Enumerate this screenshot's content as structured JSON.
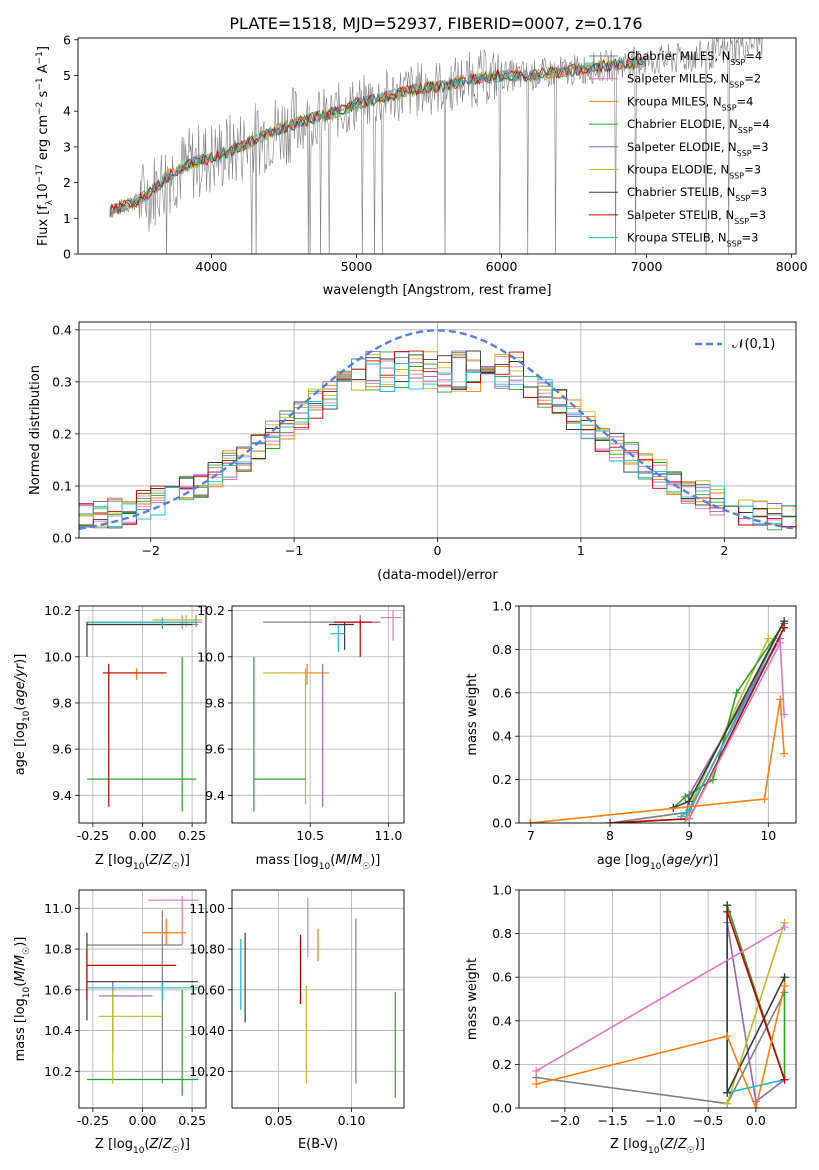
{
  "figure_title": "PLATE=1518, MJD=52937, FIBERID=0007, z=0.176",
  "colors": [
    "#7f7f7f",
    "#e377c2",
    "#ff7f0e",
    "#2ca02c",
    "#9467bd",
    "#bcbd22",
    "#393939",
    "#c00000",
    "#17becf"
  ],
  "model_names": [
    "Chabrier MILES",
    "Salpeter MILES",
    "Kroupa MILES",
    "Chabrier ELODIE",
    "Salpeter ELODIE",
    "Kroupa ELODIE",
    "Chabrier STELIB",
    "Salpeter STELIB",
    "Kroupa STELIB"
  ],
  "chart_data": [
    {
      "id": "spectrum",
      "type": "line",
      "title": "PLATE=1518, MJD=52937, FIBERID=0007, z=0.176",
      "xlabel": "wavelength [Angstrom, rest frame]",
      "ylabel": "Flux [f_λ 10^-17 erg cm^-2 s^-1 A^-1]",
      "xlim": [
        3080,
        8030
      ],
      "ylim": [
        0,
        6.05
      ],
      "xticks": [
        4000,
        5000,
        6000,
        7000,
        8000
      ],
      "yticks": [
        0,
        1,
        2,
        3,
        4,
        5,
        6
      ],
      "data_curve": {
        "name": "data",
        "x": [
          3300,
          3400,
          3500,
          3600,
          3700,
          3800,
          3900,
          4000,
          4200,
          4400,
          4600,
          4800,
          5000,
          5200,
          5400,
          5600,
          5800,
          6000,
          6200,
          6400,
          6600,
          6800,
          7000,
          7200,
          7400,
          7600,
          7800
        ],
        "y": [
          1.2,
          1.35,
          1.5,
          1.8,
          2.2,
          2.4,
          2.6,
          2.7,
          3.0,
          3.4,
          3.7,
          3.9,
          4.2,
          4.4,
          4.6,
          4.7,
          4.9,
          5.0,
          5.0,
          5.1,
          5.2,
          5.3,
          5.4,
          5.45,
          5.55,
          5.75,
          6.0
        ]
      },
      "legend": [
        {
          "label": "Chabrier MILES, N_SSP=4"
        },
        {
          "label": "Salpeter MILES, N_SSP=2"
        },
        {
          "label": "Kroupa MILES, N_SSP=4"
        },
        {
          "label": "Chabrier ELODIE, N_SSP=4"
        },
        {
          "label": "Salpeter ELODIE, N_SSP=3"
        },
        {
          "label": "Kroupa ELODIE, N_SSP=3"
        },
        {
          "label": "Chabrier STELIB, N_SSP=3"
        },
        {
          "label": "Salpeter STELIB, N_SSP=3"
        },
        {
          "label": "Kroupa STELIB, N_SSP=3"
        }
      ]
    },
    {
      "id": "residuals",
      "type": "line",
      "xlabel": "(data-model)/error",
      "ylabel": "Normed distribution",
      "xlim": [
        -2.5,
        2.5
      ],
      "ylim": [
        0,
        0.415
      ],
      "xticks": [
        -2,
        -1,
        0,
        1,
        2
      ],
      "yticks": [
        0.0,
        0.1,
        0.2,
        0.3,
        0.4
      ],
      "legend": [
        {
          "label": "𝒩(0,1)"
        }
      ],
      "gaussian": {
        "mean": 0,
        "sigma": 1
      }
    },
    {
      "id": "age-vs-Z",
      "type": "scatter",
      "xlabel": "Z [log10(Z/Z☉)]",
      "ylabel": "age [log10(age/yr)]",
      "xlim": [
        -0.32,
        0.32
      ],
      "ylim": [
        9.28,
        10.22
      ],
      "xticks": [
        -0.25,
        0.0,
        0.25
      ],
      "yticks": [
        9.4,
        9.6,
        9.8,
        10.0,
        10.2
      ]
    },
    {
      "id": "age-vs-mass",
      "type": "scatter",
      "xlabel": "mass [log10(M/M☉)]",
      "ylabel": "",
      "xlim": [
        10.0,
        11.1
      ],
      "ylim": [
        9.28,
        10.22
      ],
      "xticks": [
        10.5,
        11.0
      ],
      "yticks": [
        9.4,
        9.6,
        9.8,
        10.0,
        10.2
      ]
    },
    {
      "id": "weight-vs-age",
      "type": "line",
      "xlabel": "age [log10(age/yr)]",
      "ylabel": "mass weight",
      "xlim": [
        6.85,
        10.35
      ],
      "ylim": [
        0,
        1.0
      ],
      "xticks": [
        7,
        8,
        9,
        10
      ],
      "yticks": [
        0.0,
        0.2,
        0.4,
        0.6,
        0.8,
        1.0
      ],
      "series": [
        {
          "x": [
            8.0,
            9.0,
            10.2
          ],
          "y": [
            0.0,
            0.05,
            0.93
          ]
        },
        {
          "x": [
            9.0,
            10.15,
            10.2
          ],
          "y": [
            0.02,
            0.83,
            0.5
          ]
        },
        {
          "x": [
            6.99,
            9.95,
            10.15,
            10.2
          ],
          "y": [
            0.0,
            0.11,
            0.57,
            0.32
          ]
        },
        {
          "x": [
            8.8,
            8.95,
            9.3,
            9.6,
            10.2
          ],
          "y": [
            0.07,
            0.12,
            0.2,
            0.6,
            0.92
          ]
        },
        {
          "x": [
            8.95,
            9.0,
            10.15
          ],
          "y": [
            0.0,
            0.13,
            0.85
          ]
        },
        {
          "x": [
            8.95,
            9.05,
            10.0
          ],
          "y": [
            0.0,
            0.11,
            0.85
          ]
        },
        {
          "x": [
            8.8,
            9.0,
            10.2
          ],
          "y": [
            0.07,
            0.1,
            0.93
          ]
        },
        {
          "x": [
            8.0,
            9.0,
            10.2
          ],
          "y": [
            0.0,
            0.02,
            0.9
          ]
        },
        {
          "x": [
            8.9,
            9.0,
            10.2
          ],
          "y": [
            0.03,
            0.06,
            0.9
          ]
        }
      ]
    },
    {
      "id": "mass-vs-Z",
      "type": "scatter",
      "xlabel": "Z [log10(Z/Z☉)]",
      "ylabel": "mass [log10(M/M☉)]",
      "xlim": [
        -0.32,
        0.32
      ],
      "ylim": [
        10.02,
        11.09
      ],
      "xticks": [
        -0.25,
        0.0,
        0.25
      ],
      "yticks": [
        10.2,
        10.4,
        10.6,
        10.8,
        11.0
      ]
    },
    {
      "id": "mass-vs-EBV",
      "type": "scatter",
      "xlabel": "E(B-V)",
      "ylabel": "",
      "xlim": [
        0.018,
        0.136
      ],
      "ylim": [
        10.02,
        11.09
      ],
      "xticks": [
        0.05,
        0.1
      ],
      "yticks": [
        10.2,
        10.4,
        10.6,
        10.8,
        11.0
      ]
    },
    {
      "id": "weight-vs-Z",
      "type": "line",
      "xlabel": "Z [log10(Z/Z☉)]",
      "ylabel": "mass weight",
      "xlim": [
        -2.48,
        0.42
      ],
      "ylim": [
        0,
        1.0
      ],
      "xticks": [
        -2.0,
        -1.5,
        -1.0,
        -0.5,
        0.0
      ],
      "yticks": [
        0.0,
        0.2,
        0.4,
        0.6,
        0.8,
        1.0
      ],
      "series": [
        {
          "x": [
            -2.3,
            -0.3,
            0.3
          ],
          "y": [
            0.14,
            0.02,
            0.53
          ]
        },
        {
          "x": [
            -2.3,
            0.3
          ],
          "y": [
            0.17,
            0.83
          ]
        },
        {
          "x": [
            -2.3,
            -0.3,
            0.0,
            0.3
          ],
          "y": [
            0.11,
            0.33,
            0.0,
            0.56
          ]
        },
        {
          "x": [
            -0.3,
            -0.3,
            0.3,
            0.3
          ],
          "y": [
            0.07,
            0.93,
            0.13,
            0.6
          ]
        },
        {
          "x": [
            -0.3,
            0.0,
            0.3
          ],
          "y": [
            0.85,
            0.03,
            0.13
          ]
        },
        {
          "x": [
            -0.3,
            0.3
          ],
          "y": [
            0.02,
            0.85
          ]
        },
        {
          "x": [
            -0.3,
            -0.3,
            0.3
          ],
          "y": [
            0.93,
            0.07,
            0.6
          ]
        },
        {
          "x": [
            -0.3,
            0.3
          ],
          "y": [
            0.9,
            0.13
          ]
        },
        {
          "x": [
            -0.3,
            -0.3,
            0.3
          ],
          "y": [
            0.9,
            0.07,
            0.13
          ]
        }
      ]
    }
  ]
}
